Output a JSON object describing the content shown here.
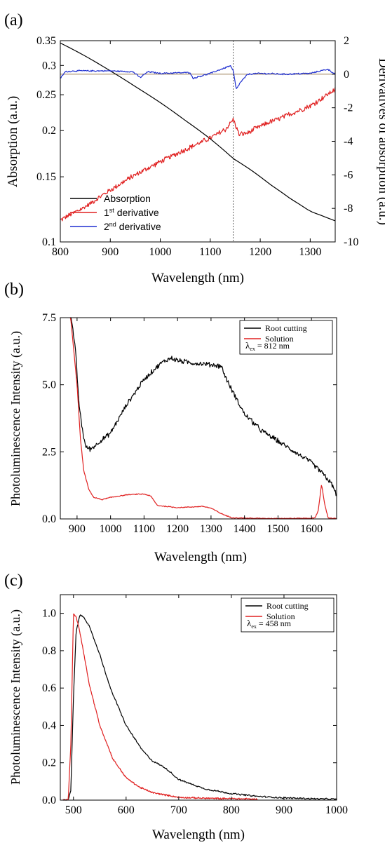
{
  "chart_data": [
    {
      "panel_label": "(a)",
      "type": "line",
      "xlabel": "Wavelength (nm)",
      "ylabel": "Absorption (a.u.)",
      "y2label": "Derivatives of absorption (a.u.)",
      "xlim": [
        800,
        1350
      ],
      "ylim": [
        0.1,
        0.35
      ],
      "yscale": "log",
      "y2lim": [
        -10,
        2
      ],
      "xticks": [
        800,
        900,
        1000,
        1100,
        1200,
        1300
      ],
      "yticks": [
        0.1,
        0.15,
        0.2,
        0.25,
        0.3,
        0.35
      ],
      "ytick_labels": [
        "0.1",
        "0.15",
        "0.2",
        "0.25",
        "0.3",
        "0.35"
      ],
      "y2ticks": [
        -10,
        -8,
        -6,
        -4,
        -2,
        0,
        2
      ],
      "vline_x": 1146,
      "hline_y2": 0,
      "legend": {
        "placement": "lower-left",
        "entries": [
          {
            "label": "Absorption",
            "color": "#000000"
          },
          {
            "label": "1",
            "sup": "st",
            "rest": " derivative",
            "color": "#e02020"
          },
          {
            "label": "2",
            "sup": "nd",
            "rest": " derivative",
            "color": "#1f2fd0"
          }
        ]
      },
      "series": [
        {
          "name": "Absorption",
          "axis": "left",
          "color": "#000000",
          "x": [
            800,
            850,
            900,
            950,
            1000,
            1050,
            1100,
            1146,
            1180,
            1220,
            1260,
            1300,
            1350
          ],
          "y": [
            0.345,
            0.318,
            0.29,
            0.263,
            0.238,
            0.213,
            0.19,
            0.168,
            0.157,
            0.143,
            0.131,
            0.121,
            0.114
          ]
        },
        {
          "name": "1st derivative",
          "axis": "right",
          "color": "#e02020",
          "noise": 0.18,
          "x": [
            800,
            850,
            900,
            950,
            1000,
            1050,
            1100,
            1130,
            1146,
            1158,
            1175,
            1200,
            1250,
            1300,
            1350
          ],
          "y": [
            -8.7,
            -7.9,
            -6.9,
            -6.0,
            -5.2,
            -4.5,
            -3.8,
            -3.3,
            -2.7,
            -3.6,
            -3.5,
            -3.1,
            -2.5,
            -1.9,
            -0.9
          ]
        },
        {
          "name": "2nd derivative",
          "axis": "right",
          "color": "#1f2fd0",
          "noise": 0.05,
          "x": [
            800,
            810,
            830,
            850,
            900,
            945,
            960,
            975,
            1000,
            1060,
            1065,
            1100,
            1140,
            1146,
            1152,
            1160,
            1175,
            1200,
            1250,
            1300,
            1335,
            1350
          ],
          "y": [
            -0.25,
            0.15,
            0.2,
            0.2,
            0.2,
            0.15,
            -0.2,
            0.15,
            0.05,
            0.1,
            -0.25,
            0.05,
            0.5,
            0.2,
            -0.9,
            -0.5,
            0.0,
            0.05,
            0.0,
            0.05,
            0.3,
            0.0
          ]
        }
      ]
    },
    {
      "panel_label": "(b)",
      "type": "line",
      "xlabel": "Wavelength (nm)",
      "ylabel": "Photoluminescence Intensity (a.u.)",
      "xlim": [
        850,
        1675
      ],
      "ylim": [
        0,
        7.5
      ],
      "xticks": [
        900,
        1000,
        1100,
        1200,
        1300,
        1400,
        1500,
        1600
      ],
      "yticks": [
        0,
        2.5,
        5,
        7.5
      ],
      "ytick_labels": [
        "0.0",
        "2.5",
        "5.0",
        "7.5"
      ],
      "legend": {
        "placement": "top-right",
        "entries": [
          {
            "label": "Root cutting",
            "color": "#000000"
          },
          {
            "label": "Solution",
            "color": "#e02020"
          }
        ],
        "note": {
          "lambda": "λ",
          "sub": "ex",
          "value": " = 812 nm"
        }
      },
      "series": [
        {
          "name": "Root cutting",
          "color": "#000000",
          "noise": 0.11,
          "x": [
            880,
            895,
            905,
            915,
            925,
            940,
            960,
            1000,
            1050,
            1100,
            1150,
            1180,
            1200,
            1250,
            1300,
            1330,
            1350,
            1400,
            1450,
            1500,
            1550,
            1600,
            1640,
            1660,
            1675
          ],
          "y": [
            7.6,
            6.4,
            4.4,
            3.4,
            2.7,
            2.6,
            2.8,
            3.2,
            4.3,
            5.2,
            5.8,
            6.0,
            5.9,
            5.8,
            5.75,
            5.7,
            5.1,
            3.9,
            3.3,
            2.9,
            2.5,
            2.1,
            1.6,
            1.3,
            0.9
          ]
        },
        {
          "name": "Solution",
          "color": "#e02020",
          "noise": 0.02,
          "x": [
            880,
            900,
            910,
            920,
            935,
            950,
            975,
            1000,
            1050,
            1100,
            1120,
            1140,
            1200,
            1250,
            1275,
            1300,
            1330,
            1360,
            1400,
            1450,
            1500,
            1550,
            1610,
            1620,
            1630,
            1640,
            1650,
            1675
          ],
          "y": [
            7.6,
            5.0,
            3.0,
            1.8,
            1.1,
            0.8,
            0.72,
            0.8,
            0.9,
            0.93,
            0.85,
            0.5,
            0.42,
            0.45,
            0.47,
            0.4,
            0.2,
            0.05,
            0.03,
            0.02,
            0.02,
            0.02,
            0.03,
            0.3,
            1.3,
            0.5,
            0.03,
            0.02
          ]
        }
      ]
    },
    {
      "panel_label": "(c)",
      "type": "line",
      "xlabel": "Wavelength (nm)",
      "ylabel": "Photoluminescence Intensity (a.u.)",
      "xlim": [
        475,
        1000
      ],
      "ylim": [
        0,
        1.1
      ],
      "xticks": [
        500,
        600,
        700,
        800,
        900,
        1000
      ],
      "yticks": [
        0,
        0.2,
        0.4,
        0.6,
        0.8,
        1.0
      ],
      "ytick_labels": [
        "0.0",
        "0.2",
        "0.4",
        "0.6",
        "0.8",
        "1.0"
      ],
      "legend": {
        "placement": "top-right",
        "entries": [
          {
            "label": "Root cutting",
            "color": "#000000"
          },
          {
            "label": "Solution",
            "color": "#e02020"
          }
        ],
        "note": {
          "lambda": "λ",
          "sub": "ex",
          "value": " = 458 nm"
        }
      },
      "series": [
        {
          "name": "Root cutting",
          "color": "#000000",
          "noise": 0.005,
          "x": [
            480,
            490,
            495,
            500,
            505,
            512,
            520,
            530,
            550,
            570,
            600,
            630,
            650,
            670,
            680,
            700,
            750,
            800,
            850,
            900,
            950,
            1000
          ],
          "y": [
            0.0,
            0.0,
            0.05,
            0.55,
            0.9,
            0.99,
            0.98,
            0.93,
            0.78,
            0.6,
            0.4,
            0.27,
            0.21,
            0.18,
            0.16,
            0.11,
            0.06,
            0.035,
            0.02,
            0.012,
            0.008,
            0.005
          ]
        },
        {
          "name": "Solution",
          "color": "#e02020",
          "noise": 0.005,
          "x": [
            480,
            490,
            495,
            500,
            505,
            510,
            520,
            530,
            550,
            575,
            600,
            625,
            650,
            700,
            750,
            800,
            850
          ],
          "y": [
            0.0,
            0.0,
            0.3,
            1.0,
            0.98,
            0.93,
            0.78,
            0.62,
            0.4,
            0.22,
            0.12,
            0.07,
            0.04,
            0.015,
            0.01,
            0.008,
            0.005
          ]
        }
      ]
    }
  ]
}
